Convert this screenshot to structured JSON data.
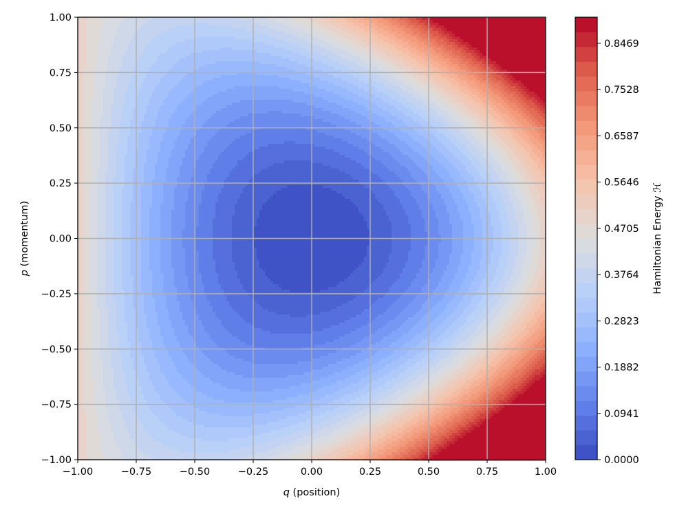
{
  "chart_data": {
    "type": "heatmap",
    "subtype": "filled-contour",
    "colormap": "coolwarm",
    "function": "H(q,p) = p^2/2 + q^2/2 + q*p^2/2",
    "xlabel": {
      "var": "q",
      "rest": " (position)"
    },
    "ylabel": {
      "var": "p",
      "rest": " (momentum)"
    },
    "colorbar_label": "Hamiltonian Energy ℋ",
    "xlim": [
      -1.0,
      1.0
    ],
    "ylim": [
      -1.0,
      1.0
    ],
    "grid": true,
    "x_ticks": [
      -1.0,
      -0.75,
      -0.5,
      -0.25,
      0.0,
      0.25,
      0.5,
      0.75,
      1.0
    ],
    "x_tick_labels": [
      "−1.00",
      "−0.75",
      "−0.50",
      "−0.25",
      "0.00",
      "0.25",
      "0.50",
      "0.75",
      "1.00"
    ],
    "y_ticks": [
      -1.0,
      -0.75,
      -0.5,
      -0.25,
      0.0,
      0.25,
      0.5,
      0.75,
      1.0
    ],
    "y_tick_labels": [
      "−1.00",
      "−0.75",
      "−0.50",
      "−0.25",
      "0.00",
      "0.25",
      "0.50",
      "0.75",
      "1.00"
    ],
    "colorbar": {
      "min": 0.0,
      "max": 0.9,
      "levels": 30,
      "ticks": [
        0.0,
        0.0941,
        0.1882,
        0.2823,
        0.3764,
        0.4705,
        0.5646,
        0.6587,
        0.7528,
        0.8469
      ],
      "tick_labels": [
        "0.0000",
        "0.0941",
        "0.1882",
        "0.2823",
        "0.3764",
        "0.4705",
        "0.5646",
        "0.6587",
        "0.7528",
        "0.8469"
      ]
    }
  }
}
